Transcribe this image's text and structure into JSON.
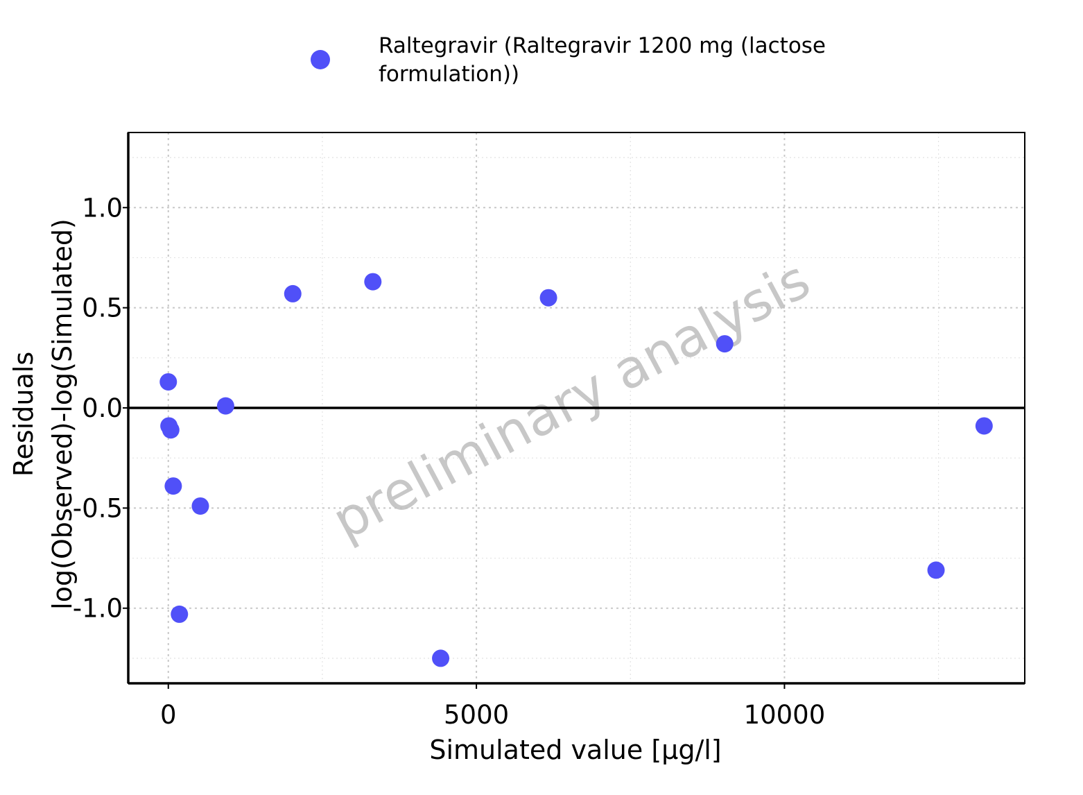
{
  "chart_data": {
    "type": "scatter",
    "xlabel": "Simulated value [µg/l]",
    "ylabel_lines": [
      "Residuals",
      "log(Observed)-log(Simulated)"
    ],
    "xlim": [
      -650,
      13900
    ],
    "ylim": [
      -1.375,
      1.375
    ],
    "xticks": [
      0,
      5000,
      10000
    ],
    "xtick_labels": [
      "0",
      "5000",
      "10000"
    ],
    "yticks": [
      -1.0,
      -0.5,
      0.0,
      0.5,
      1.0
    ],
    "ytick_labels": [
      "-1.0",
      "-0.5",
      "0.0",
      "0.5",
      "1.0"
    ],
    "grid": true,
    "legend_position": "top",
    "watermark": "preliminary analysis",
    "series": [
      {
        "name": "Raltegravir (Raltegravir 1200 mg (lactose formulation))",
        "legend_lines": [
          "Raltegravir (Raltegravir 1200 mg (lactose",
          "formulation))"
        ],
        "color": "#5050f8",
        "points": [
          {
            "x": 0,
            "y": 0.13
          },
          {
            "x": 10,
            "y": -0.09
          },
          {
            "x": 40,
            "y": -0.11
          },
          {
            "x": 80,
            "y": -0.39
          },
          {
            "x": 180,
            "y": -1.03
          },
          {
            "x": 520,
            "y": -0.49
          },
          {
            "x": 930,
            "y": 0.01
          },
          {
            "x": 2020,
            "y": 0.57
          },
          {
            "x": 3320,
            "y": 0.63
          },
          {
            "x": 4420,
            "y": -1.25
          },
          {
            "x": 6170,
            "y": 0.55
          },
          {
            "x": 9030,
            "y": 0.32
          },
          {
            "x": 12460,
            "y": -0.81
          },
          {
            "x": 13240,
            "y": -0.09
          }
        ]
      }
    ]
  }
}
